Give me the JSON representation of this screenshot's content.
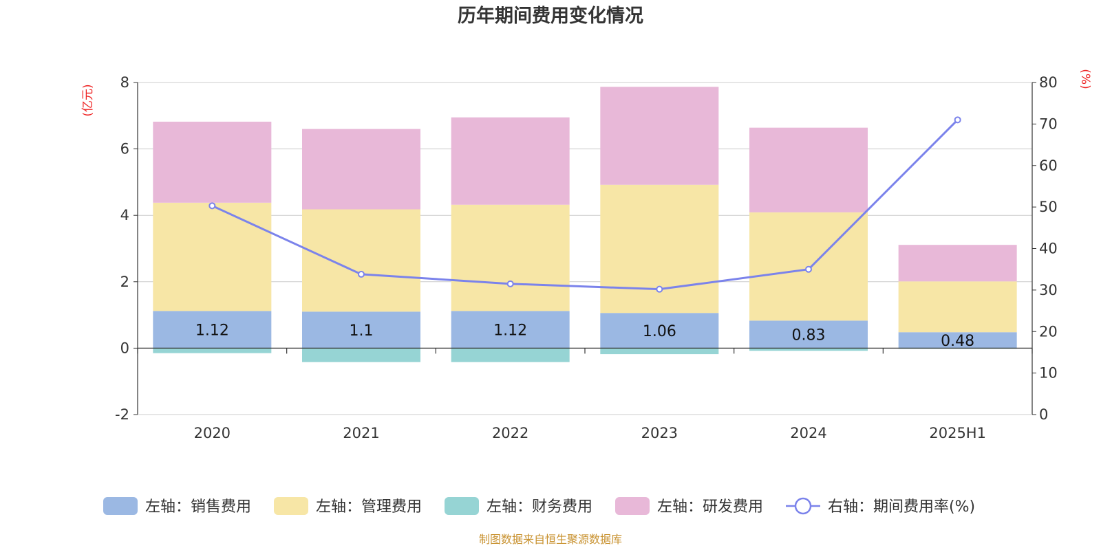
{
  "chart_data": {
    "type": "bar",
    "title": "历年期间费用变化情况",
    "categories": [
      "2020",
      "2021",
      "2022",
      "2023",
      "2024",
      "2025H1"
    ],
    "left_axis": {
      "unit": "(亿元)",
      "min": -2,
      "max": 8,
      "ticks": [
        -2,
        0,
        2,
        4,
        6,
        8
      ]
    },
    "right_axis": {
      "unit": "(%)",
      "min": 0,
      "max": 80,
      "ticks": [
        0,
        10,
        20,
        30,
        40,
        50,
        60,
        70,
        80
      ]
    },
    "grid": true,
    "legend_position": "bottom",
    "series": [
      {
        "name": "左轴：销售费用",
        "type": "bar",
        "stack": "pos",
        "color": "#9bb8e3",
        "values": [
          1.12,
          1.1,
          1.12,
          1.06,
          0.83,
          0.48
        ],
        "labels": [
          "1.12",
          "1.1",
          "1.12",
          "1.06",
          "0.83",
          "0.48"
        ]
      },
      {
        "name": "左轴：管理费用",
        "type": "bar",
        "stack": "pos",
        "color": "#f7e6a6",
        "values": [
          3.26,
          3.08,
          3.2,
          3.86,
          3.26,
          1.53
        ]
      },
      {
        "name": "左轴：财务费用",
        "type": "bar",
        "stack": "neg",
        "color": "#96d4d4",
        "values": [
          -0.15,
          -0.42,
          -0.42,
          -0.18,
          -0.08,
          -0.02
        ]
      },
      {
        "name": "左轴：研发费用",
        "type": "bar",
        "stack": "pos",
        "color": "#e8b8d8",
        "values": [
          2.44,
          2.42,
          2.63,
          2.95,
          2.55,
          1.1
        ]
      },
      {
        "name": "右轴：期间费用率(%)",
        "type": "line",
        "axis": "right",
        "color": "#7b83eb",
        "values": [
          50.3,
          33.8,
          31.5,
          30.2,
          35.0,
          71.0
        ]
      }
    ],
    "source": "制图数据来自恒生聚源数据库"
  }
}
